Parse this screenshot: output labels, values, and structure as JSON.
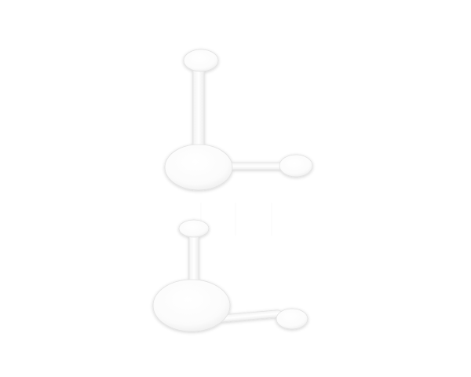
{
  "scene": {
    "background_color": "#ffffff",
    "object_color": "#ffffff",
    "outline_color": "#e2e2e2",
    "shadow_color": "#d9d9d9",
    "objects": [
      {
        "name": "upper-ball-and-stick-model",
        "parts": [
          "top-ball",
          "vertical-stick",
          "center-ball",
          "horizontal-stick",
          "right-ball"
        ]
      },
      {
        "name": "lower-ball-and-stick-model",
        "parts": [
          "top-ball",
          "vertical-stick",
          "center-ball",
          "horizontal-stick",
          "right-ball"
        ]
      }
    ]
  }
}
